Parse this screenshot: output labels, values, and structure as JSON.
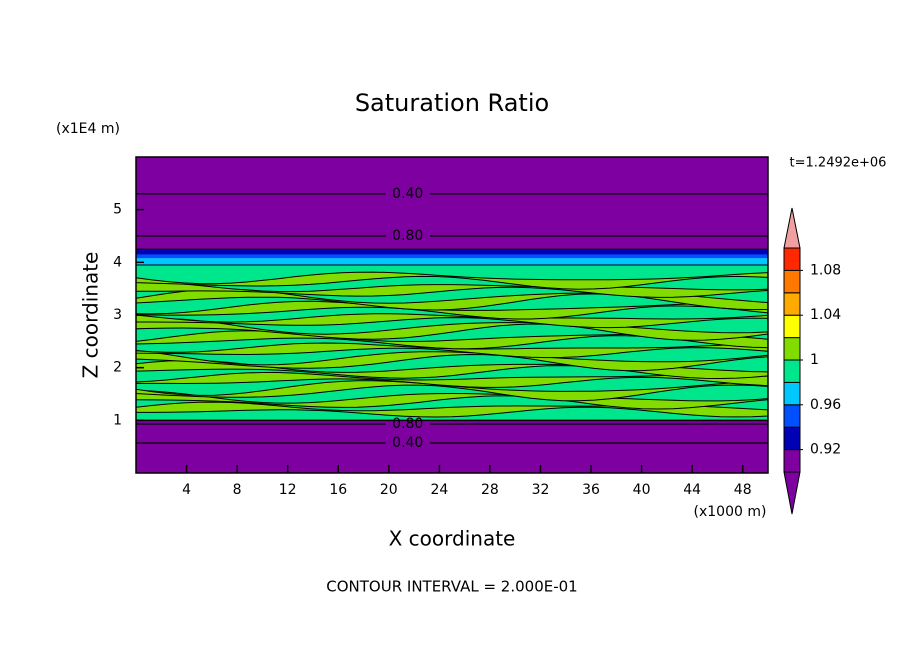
{
  "chart_data": {
    "type": "contour",
    "title": "Saturation Ratio",
    "xlabel": "X coordinate",
    "ylabel": "Z coordinate",
    "x_unit": "(x1000 m)",
    "y_unit": "(x1E4 m)",
    "time_label": "t=1.2492e+06",
    "footer": "CONTOUR INTERVAL = 2.000E-01",
    "xlim": [
      0,
      50
    ],
    "xticks": [
      4,
      8,
      12,
      16,
      20,
      24,
      28,
      32,
      36,
      40,
      44,
      48
    ],
    "ylim": [
      0,
      6
    ],
    "yticks": [
      1,
      2,
      3,
      4,
      5
    ],
    "contour_lines": [
      {
        "z": 5.3,
        "level": {
          "value": 0.4,
          "label": "0.40"
        }
      },
      {
        "z": 4.5,
        "level": {
          "value": 0.8,
          "label": "0.80"
        }
      },
      {
        "z": 0.93,
        "level": {
          "value": 0.8,
          "label": "0.80"
        }
      },
      {
        "z": 0.57,
        "level": {
          "value": 0.4,
          "label": "0.40"
        }
      }
    ],
    "colorbar": {
      "levels": [
        0.9,
        0.92,
        0.94,
        0.96,
        0.98,
        1,
        1.02,
        1.04,
        1.06,
        1.08,
        1.1
      ],
      "colors": [
        "#7f00a0",
        "#0000b4",
        "#0050ff",
        "#00c8ff",
        "#00e68c",
        "#82dc00",
        "#ffff00",
        "#ffaa00",
        "#ff7800",
        "#ff2800"
      ],
      "under_color": "#7f00a0",
      "over_color": "#f0a0a0",
      "ticks": [
        0.92,
        0.96,
        1,
        1.04,
        1.08
      ]
    }
  }
}
